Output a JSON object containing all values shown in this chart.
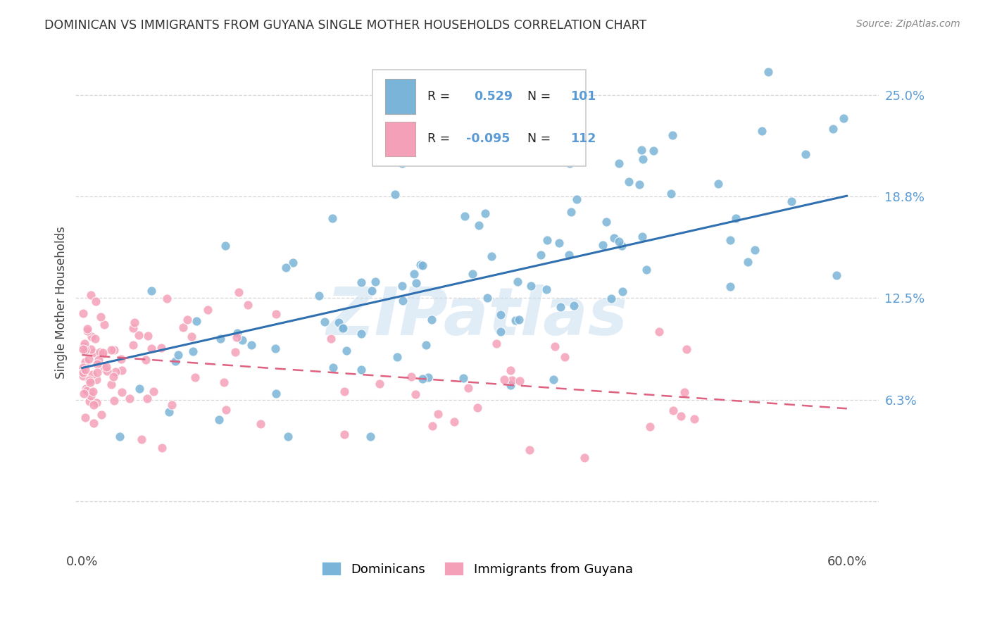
{
  "title": "DOMINICAN VS IMMIGRANTS FROM GUYANA SINGLE MOTHER HOUSEHOLDS CORRELATION CHART",
  "source": "Source: ZipAtlas.com",
  "ylabel": "Single Mother Households",
  "y_ticks": [
    0.0,
    0.0625,
    0.125,
    0.1875,
    0.25
  ],
  "y_tick_labels": [
    "",
    "6.3%",
    "12.5%",
    "18.8%",
    "25.0%"
  ],
  "xlim": [
    -0.005,
    0.625
  ],
  "ylim": [
    -0.03,
    0.275
  ],
  "blue_R": 0.529,
  "blue_N": 101,
  "pink_R": -0.095,
  "pink_N": 112,
  "blue_color": "#7ab4d8",
  "pink_color": "#f4a0b8",
  "trend_blue": "#3070b0",
  "trend_pink": "#e06080",
  "legend_blue_label": "Dominicans",
  "legend_pink_label": "Immigrants from Guyana",
  "watermark": "ZIPatlas",
  "blue_trend_x": [
    0.0,
    0.6
  ],
  "blue_trend_y": [
    0.082,
    0.188
  ],
  "pink_trend_x": [
    0.0,
    0.6
  ],
  "pink_trend_y": [
    0.09,
    0.057
  ],
  "grid_color": "#cccccc",
  "background_color": "#ffffff",
  "plot_bg_color": "#ffffff",
  "tick_color": "#5b9bd5",
  "title_color": "#333333",
  "source_color": "#888888"
}
